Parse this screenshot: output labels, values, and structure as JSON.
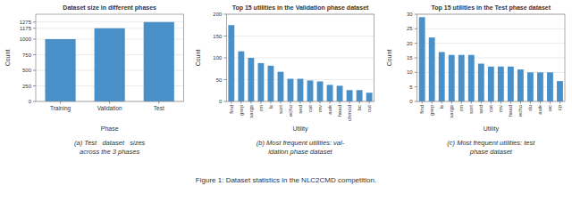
{
  "chart_data": [
    {
      "type": "bar",
      "title": "Dataset size in different phases",
      "xlabel": "Phase",
      "ylabel": "Count",
      "categories": [
        "Training",
        "Validation",
        "Test"
      ],
      "values": [
        1000,
        1175,
        1275
      ],
      "color": "#4a90c8",
      "ylim": [
        0,
        1400
      ],
      "yticks": [
        0,
        250,
        500,
        750,
        1000,
        1175,
        1275
      ],
      "grid": true,
      "caption": "(a) Test   dataset   sizes\nacross the 3 phases"
    },
    {
      "type": "bar",
      "title": "Top 15 utilities in the Validation phase dataset",
      "xlabel": "Utility",
      "ylabel": "Count",
      "categories": [
        "find",
        "grep",
        "xargs",
        "rm",
        "ls",
        "sort",
        "echo",
        "sed",
        "cat",
        "mv",
        "awk",
        "head",
        "chmod",
        "bc",
        "cut"
      ],
      "values": [
        175,
        115,
        100,
        88,
        82,
        68,
        52,
        52,
        48,
        46,
        38,
        36,
        26,
        26,
        20
      ],
      "color": "#4a90c8",
      "ylim": [
        0,
        200
      ],
      "yticks": [
        0,
        50,
        100,
        150,
        200
      ],
      "grid": true,
      "caption": "(b) Most frequent utilities: val-\nidation phase dataset"
    },
    {
      "type": "bar",
      "title": "Top 15 utilities in the Test phase dataset",
      "xlabel": "Utility",
      "ylabel": "Count",
      "categories": [
        "find",
        "grep",
        "ls",
        "xargs",
        "rm",
        "sort",
        "sed",
        "cat",
        "mv",
        "head",
        "echo",
        "du",
        "awk",
        "wc",
        "cp"
      ],
      "values": [
        29,
        22,
        17,
        16,
        16,
        16,
        13,
        12,
        12,
        12,
        11,
        10,
        10,
        10,
        7
      ],
      "color": "#4a90c8",
      "ylim": [
        0,
        30
      ],
      "yticks": [
        0,
        5,
        10,
        15,
        20,
        25,
        30
      ],
      "grid": true,
      "caption": "(c) Most frequent utilities: test\nphase dataset"
    }
  ],
  "caption": "Figure 1: Dataset statistics in the NLC2CMD competition."
}
